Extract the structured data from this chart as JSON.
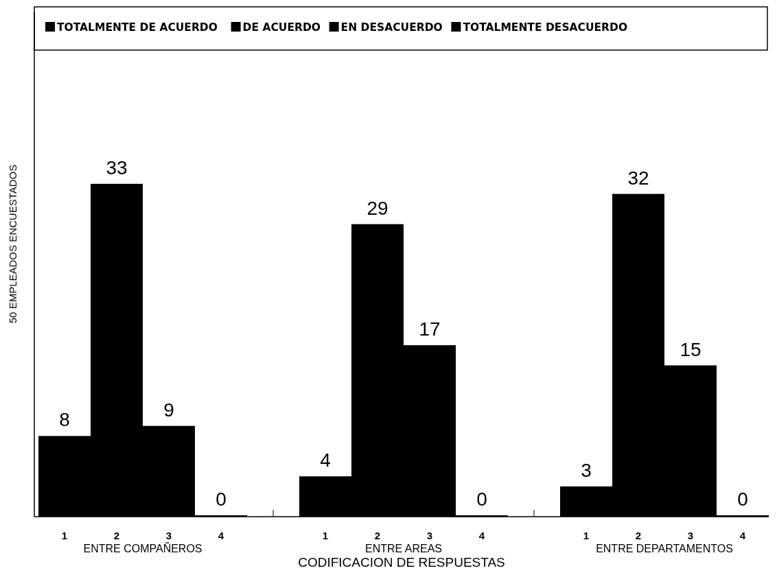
{
  "chart_data": {
    "type": "bar",
    "xlabel": "CODIFICACION DE RESPUESTAS",
    "ylabel": "50 EMPLEADOS ENCUESTADOS",
    "categories": [
      "1",
      "2",
      "3",
      "4",
      null,
      "1",
      "2",
      "3",
      "4",
      null,
      "1",
      "2",
      "3",
      "4"
    ],
    "series": [
      {
        "name": "TOTALMENTE DE ACUERDO",
        "color": "#000000",
        "values": [
          8,
          null,
          null,
          null,
          null,
          4,
          null,
          null,
          null,
          null,
          3,
          null,
          null,
          null
        ]
      },
      {
        "name": "DE ACUERDO",
        "color": "#000000",
        "values": [
          null,
          33,
          null,
          null,
          null,
          null,
          29,
          null,
          null,
          null,
          null,
          32,
          null,
          null
        ]
      },
      {
        "name": "EN DESACUERDO",
        "color": "#000000",
        "values": [
          null,
          null,
          9,
          null,
          null,
          null,
          null,
          17,
          null,
          null,
          null,
          null,
          15,
          null
        ]
      },
      {
        "name": "TOTALMENTE DESACUERDO",
        "color": "#000000",
        "values": [
          null,
          null,
          null,
          0,
          null,
          null,
          null,
          null,
          0,
          null,
          null,
          null,
          null,
          0
        ]
      }
    ],
    "annotations": [
      "ENTRE COMPAÑEROS",
      "ENTRE AREAS",
      "ENTRE DEPARTAMENTOS"
    ],
    "ylim": [
      0,
      50
    ],
    "data_labels": true,
    "legend": "top"
  }
}
